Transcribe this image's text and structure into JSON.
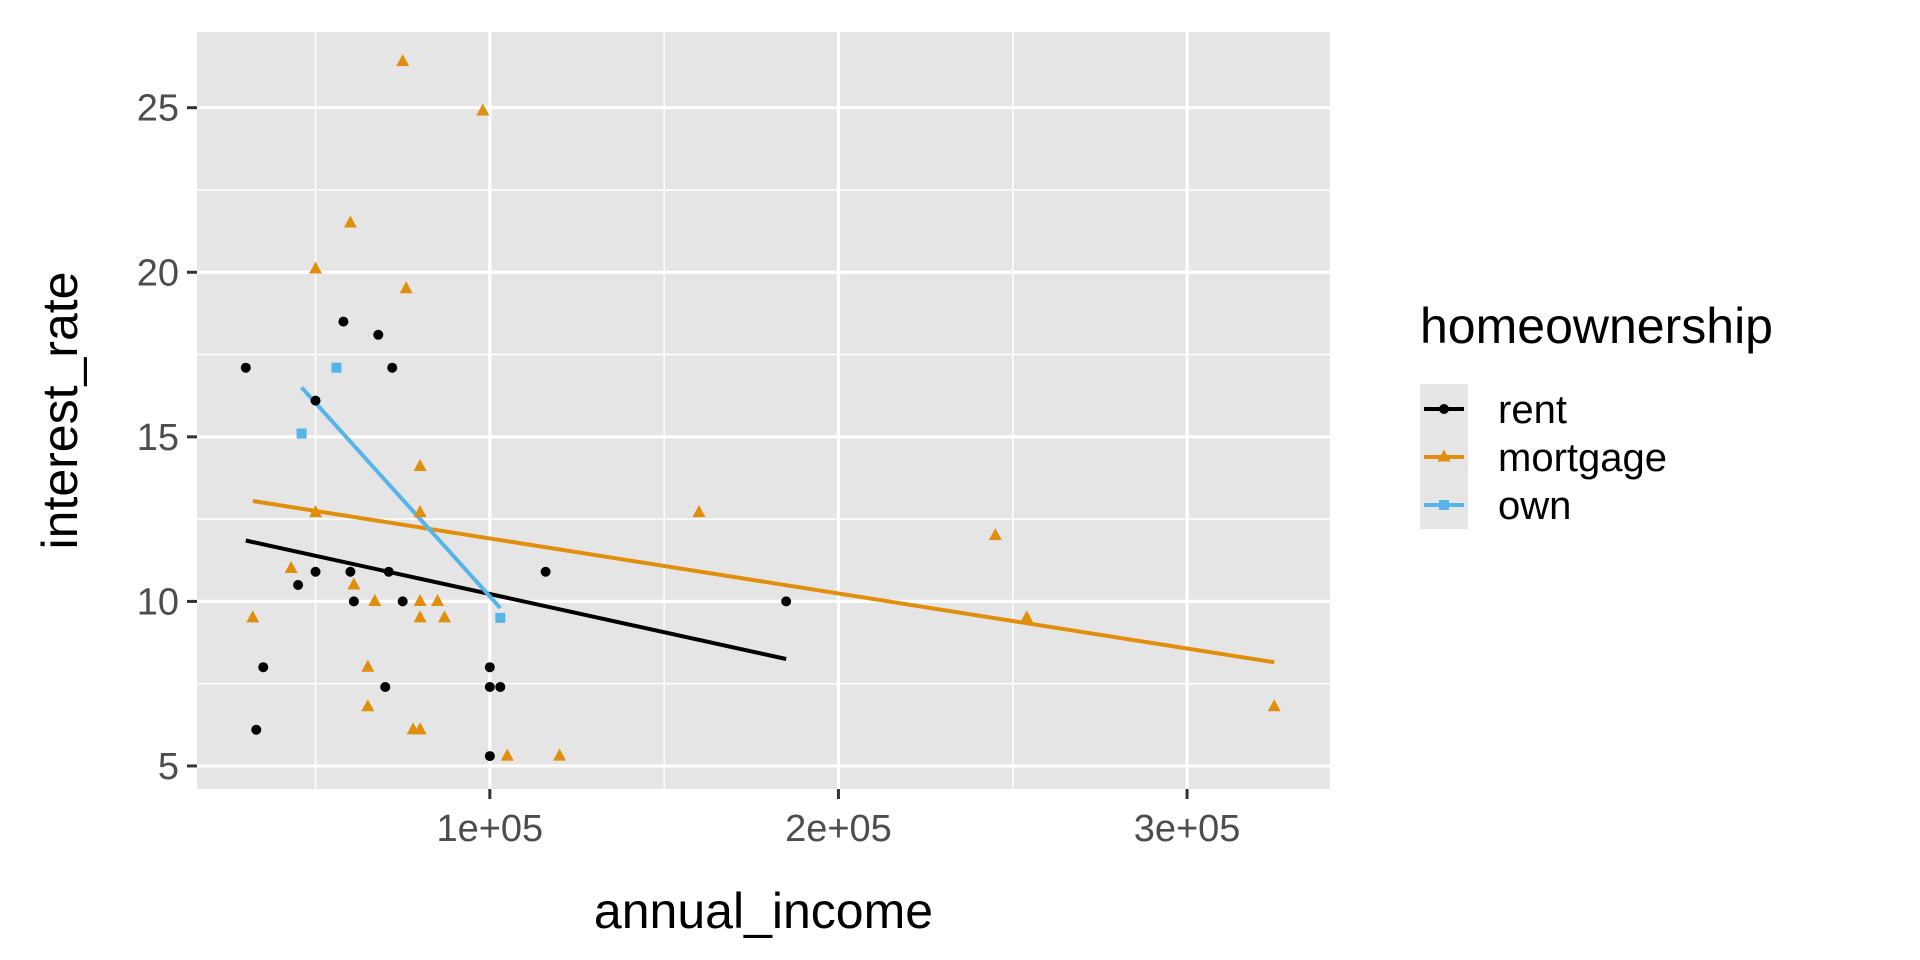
{
  "chart_data": {
    "type": "scatter",
    "title": "",
    "xlabel": "annual_income",
    "ylabel": "interest_rate",
    "xlim": [
      16000,
      341000
    ],
    "ylim": [
      4.3,
      27.3
    ],
    "x_major_ticks": [
      100000,
      200000,
      300000
    ],
    "x_tick_labels": [
      "1e+05",
      "2e+05",
      "3e+05"
    ],
    "x_minor_ticks": [
      50000,
      150000,
      250000
    ],
    "y_major_ticks": [
      5,
      10,
      15,
      20,
      25
    ],
    "y_tick_labels": [
      "5",
      "10",
      "15",
      "20",
      "25"
    ],
    "y_minor_ticks": [
      7.5,
      12.5,
      17.5,
      22.5
    ],
    "grid": true,
    "panel_background": "#e5e5e5",
    "grid_color": "#ffffff",
    "legend": {
      "title": "homeownership",
      "position": "right"
    },
    "series": [
      {
        "name": "rent",
        "color": "#000000",
        "marker": "circle",
        "points": [
          [
            30000,
            17.1
          ],
          [
            33000,
            6.1
          ],
          [
            35000,
            8.0
          ],
          [
            45000,
            10.5
          ],
          [
            50000,
            16.1
          ],
          [
            50000,
            10.9
          ],
          [
            58000,
            18.5
          ],
          [
            60000,
            10.9
          ],
          [
            61000,
            10.0
          ],
          [
            68000,
            18.1
          ],
          [
            70000,
            7.4
          ],
          [
            71000,
            10.9
          ],
          [
            72000,
            17.1
          ],
          [
            75000,
            10.0
          ],
          [
            100000,
            5.3
          ],
          [
            100000,
            8.0
          ],
          [
            100000,
            7.4
          ],
          [
            103000,
            7.4
          ],
          [
            116000,
            10.9
          ],
          [
            185000,
            10.0
          ]
        ],
        "fit": {
          "x": [
            30000,
            185000
          ],
          "y": [
            11.85,
            8.25
          ]
        }
      },
      {
        "name": "mortgage",
        "color": "#e08e0b",
        "marker": "triangle",
        "points": [
          [
            32000,
            9.5
          ],
          [
            43000,
            11.0
          ],
          [
            50000,
            20.1
          ],
          [
            50000,
            12.7
          ],
          [
            60000,
            21.5
          ],
          [
            61000,
            10.5
          ],
          [
            65000,
            8.0
          ],
          [
            65000,
            6.8
          ],
          [
            67000,
            10.0
          ],
          [
            75000,
            26.4
          ],
          [
            76000,
            19.5
          ],
          [
            78000,
            6.1
          ],
          [
            80000,
            6.1
          ],
          [
            80000,
            14.1
          ],
          [
            80000,
            12.7
          ],
          [
            80000,
            10.0
          ],
          [
            80000,
            9.5
          ],
          [
            85000,
            10.0
          ],
          [
            87000,
            9.5
          ],
          [
            98000,
            24.9
          ],
          [
            105000,
            5.3
          ],
          [
            120000,
            5.3
          ],
          [
            160000,
            12.7
          ],
          [
            245000,
            12.0
          ],
          [
            254000,
            9.5
          ],
          [
            325000,
            6.8
          ]
        ],
        "fit": {
          "x": [
            32000,
            325000
          ],
          "y": [
            13.05,
            8.15
          ]
        }
      },
      {
        "name": "own",
        "color": "#56b4e9",
        "marker": "square",
        "points": [
          [
            46000,
            15.1
          ],
          [
            56000,
            17.1
          ],
          [
            103000,
            9.5
          ]
        ],
        "fit": {
          "x": [
            46000,
            103000
          ],
          "y": [
            16.5,
            9.8
          ]
        }
      }
    ]
  }
}
